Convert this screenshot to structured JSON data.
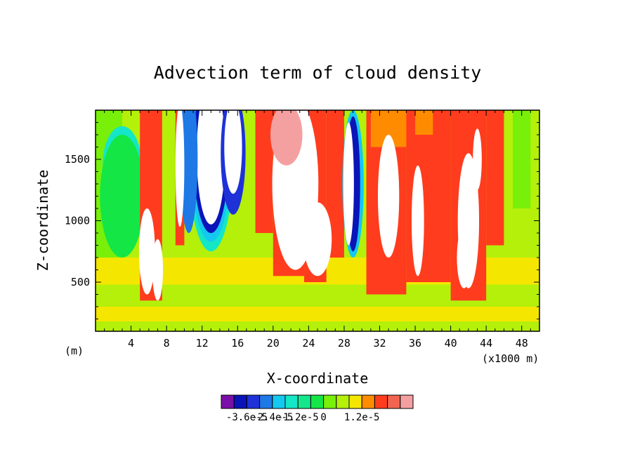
{
  "chart_data": {
    "type": "heatmap",
    "title": "Advection term of cloud density",
    "xlabel": "X-coordinate",
    "ylabel": "Z-coordinate",
    "x_unit_label": "(m)",
    "x_scale_label": "(x1000 m)",
    "x_ticks": [
      4,
      8,
      12,
      16,
      20,
      24,
      28,
      32,
      36,
      40,
      44,
      48
    ],
    "y_ticks": [
      500,
      1000,
      1500
    ],
    "xlim": [
      0,
      50
    ],
    "ylim": [
      100,
      1900
    ],
    "colorbar": {
      "labels": [
        "-3.6e-5",
        "-2.4e-5",
        "-1.2e-5",
        "0",
        "1.2e-5"
      ],
      "colors": [
        "#7a0fa8",
        "#0a14b8",
        "#1e32d8",
        "#1e78e6",
        "#14c8f0",
        "#14e6c8",
        "#14e68c",
        "#14e646",
        "#78f00a",
        "#b4f00a",
        "#f5e600",
        "#ff8c00",
        "#ff3c1e",
        "#f06450",
        "#f5a0a0"
      ]
    }
  },
  "colors": {
    "white": "#ffffff",
    "yellow": "#f5e600",
    "lime": "#b4f00a",
    "green1": "#78f00a",
    "green2": "#14e646",
    "aqua": "#14e6c8",
    "cyan": "#14c8f0",
    "blue": "#1e78e6",
    "navy": "#1e32d8",
    "dblue": "#0a14b8",
    "purple": "#7a0fa8",
    "orange": "#ff8c00",
    "red": "#ff3c1e",
    "salmon": "#f5a0a0"
  }
}
